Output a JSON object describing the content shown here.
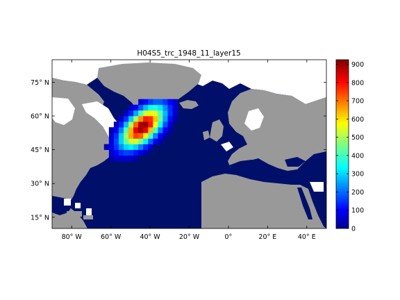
{
  "title": "H04S5_trc_1948_11_layer15",
  "map": {
    "lon_range": [
      -90,
      50
    ],
    "lat_range": [
      10,
      85
    ],
    "lon_ticks": [
      {
        "lon": -80,
        "label": "80° W"
      },
      {
        "lon": -60,
        "label": "60° W"
      },
      {
        "lon": -40,
        "label": "40° W"
      },
      {
        "lon": -20,
        "label": "20° W"
      },
      {
        "lon": 0,
        "label": "0°"
      },
      {
        "lon": 20,
        "label": "20° E"
      },
      {
        "lon": 40,
        "label": "40° E"
      }
    ],
    "lat_ticks": [
      {
        "lat": 75,
        "label": "75° N"
      },
      {
        "lat": 60,
        "label": "60° N"
      },
      {
        "lat": 45,
        "label": "45° N"
      },
      {
        "lat": 30,
        "label": "30° N"
      },
      {
        "lat": 15,
        "label": "15° N"
      }
    ],
    "colors": {
      "ocean": "#00106a",
      "land": "#999999",
      "nodata": "#ffffff"
    }
  },
  "colorbar": {
    "min": 0,
    "max": 925,
    "ticks": [
      {
        "value": 0,
        "label": "0"
      },
      {
        "value": 100,
        "label": "100"
      },
      {
        "value": 200,
        "label": "200"
      },
      {
        "value": 300,
        "label": "300"
      },
      {
        "value": 400,
        "label": "400"
      },
      {
        "value": 500,
        "label": "500"
      },
      {
        "value": 600,
        "label": "600"
      },
      {
        "value": 700,
        "label": "700"
      },
      {
        "value": 800,
        "label": "800"
      },
      {
        "value": 900,
        "label": "900"
      }
    ],
    "colormap": "jet"
  },
  "tracer_peak": {
    "lon": -45,
    "lat": 54,
    "value": 925
  }
}
